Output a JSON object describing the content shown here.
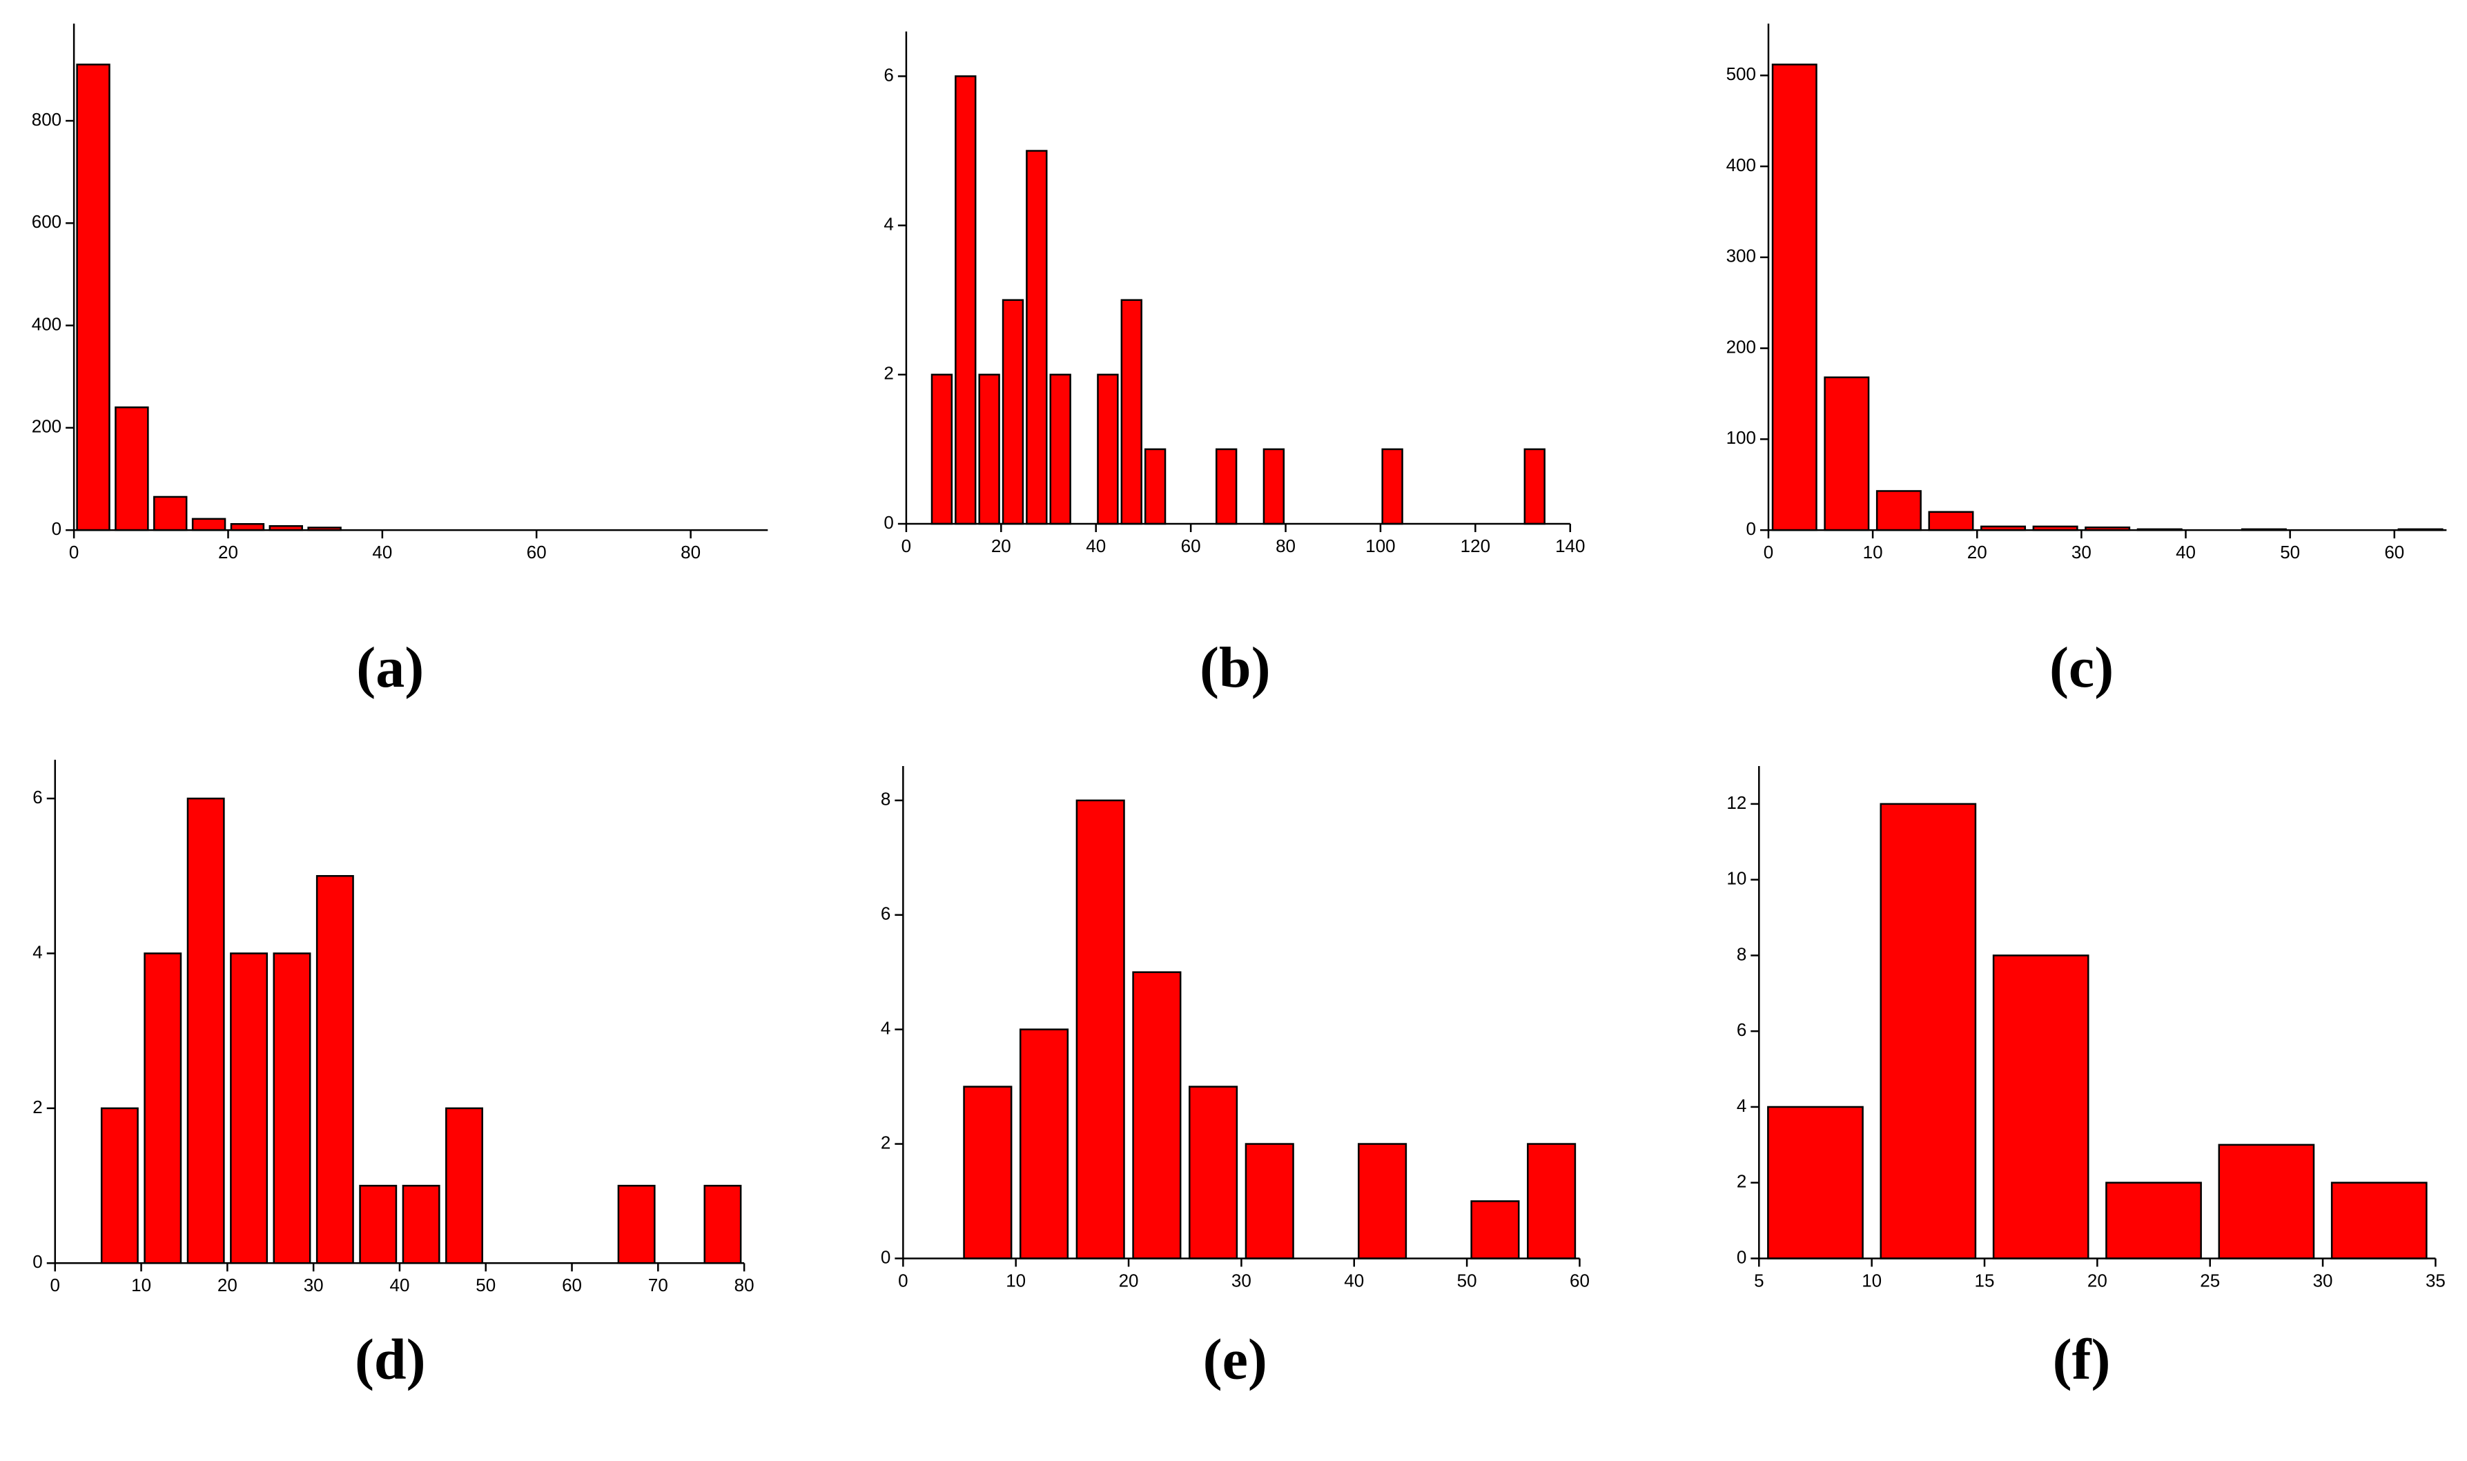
{
  "chart_data": [
    {
      "type": "histogram",
      "title": "(a)",
      "color": "#ff0000",
      "bins": [
        0,
        5,
        10,
        15,
        20,
        25,
        30,
        35
      ],
      "counts": [
        910,
        240,
        65,
        22,
        12,
        8,
        5
      ],
      "xlim": [
        0,
        90
      ],
      "ylim": [
        0,
        990
      ],
      "xticks": [
        0,
        20,
        40,
        60,
        80
      ],
      "yticks": [
        0,
        200,
        400,
        600,
        800
      ]
    },
    {
      "type": "histogram",
      "title": "(b)",
      "color": "#ff0000",
      "bins": [
        5,
        10,
        15,
        20,
        25,
        30,
        35,
        40,
        45,
        50,
        55,
        60,
        65,
        70,
        75,
        80,
        85,
        90,
        95,
        100,
        105,
        110,
        115,
        120,
        125,
        130,
        135
      ],
      "counts": [
        2,
        6,
        2,
        3,
        5,
        2,
        0,
        2,
        3,
        1,
        0,
        0,
        1,
        0,
        1,
        0,
        0,
        0,
        0,
        1,
        0,
        0,
        0,
        0,
        0,
        1
      ],
      "xlim": [
        0,
        140
      ],
      "ylim": [
        0,
        6.6
      ],
      "xticks": [
        0,
        20,
        40,
        60,
        80,
        100,
        120,
        140
      ],
      "yticks": [
        0,
        2,
        4,
        6
      ]
    },
    {
      "type": "histogram",
      "title": "(c)",
      "color": "#ff0000",
      "bins": [
        0,
        5,
        10,
        15,
        20,
        25,
        30,
        35,
        40,
        45,
        50,
        55,
        60,
        65
      ],
      "counts": [
        512,
        168,
        43,
        20,
        4,
        4,
        3,
        1,
        0,
        1,
        0,
        0,
        1
      ],
      "xlim": [
        0,
        65
      ],
      "ylim": [
        0,
        557
      ],
      "xticks": [
        0,
        10,
        20,
        30,
        40,
        50,
        60
      ],
      "yticks": [
        0,
        100,
        200,
        300,
        400,
        500
      ]
    },
    {
      "type": "histogram",
      "title": "(d)",
      "color": "#ff0000",
      "bins": [
        5,
        10,
        15,
        20,
        25,
        30,
        35,
        40,
        45,
        50,
        55,
        60,
        65,
        70,
        75,
        80
      ],
      "counts": [
        2,
        4,
        6,
        4,
        4,
        5,
        1,
        1,
        2,
        0,
        0,
        0,
        1,
        0,
        1
      ],
      "xlim": [
        0,
        80
      ],
      "ylim": [
        0,
        6.5
      ],
      "xticks": [
        0,
        10,
        20,
        30,
        40,
        50,
        60,
        70,
        80
      ],
      "yticks": [
        0,
        2,
        4,
        6
      ]
    },
    {
      "type": "histogram",
      "title": "(e)",
      "color": "#ff0000",
      "bins": [
        5,
        10,
        15,
        20,
        25,
        30,
        35,
        40,
        45,
        50,
        55,
        60
      ],
      "counts": [
        3,
        4,
        8,
        5,
        3,
        2,
        0,
        2,
        0,
        1,
        2
      ],
      "xlim": [
        0,
        60
      ],
      "ylim": [
        0,
        8.6
      ],
      "xticks": [
        0,
        10,
        20,
        30,
        40,
        50,
        60
      ],
      "yticks": [
        0,
        2,
        4,
        6,
        8
      ]
    },
    {
      "type": "histogram",
      "title": "(f)",
      "color": "#ff0000",
      "bins": [
        5,
        10,
        15,
        20,
        25,
        30,
        35
      ],
      "counts": [
        4,
        12,
        8,
        2,
        3,
        2
      ],
      "xlim": [
        5,
        35
      ],
      "ylim": [
        0,
        13
      ],
      "xticks": [
        5,
        10,
        15,
        20,
        25,
        30,
        35
      ],
      "yticks": [
        0,
        2,
        4,
        6,
        8,
        10,
        12
      ]
    }
  ]
}
